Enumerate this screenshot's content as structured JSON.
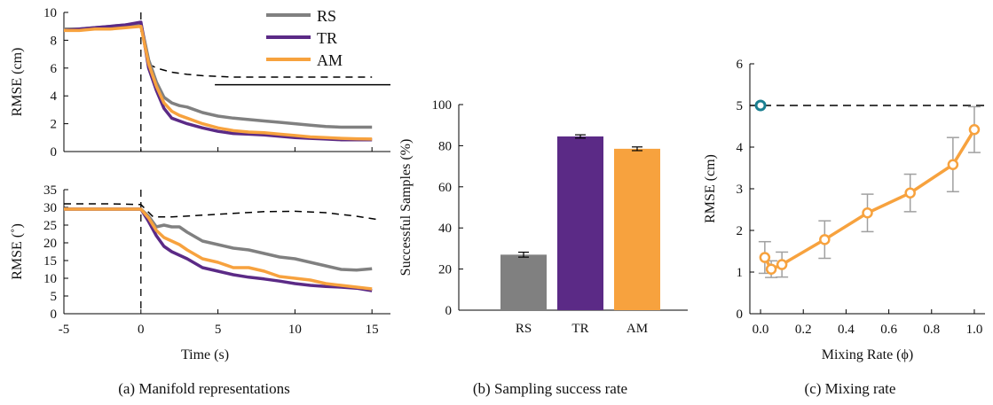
{
  "colors": {
    "RS": "#808080",
    "TR": "#5b2a86",
    "AM": "#f7a23e",
    "reference": "#000000",
    "marker": "#1a7f91"
  },
  "captions": {
    "a": "(a) Manifold representations",
    "b": "(b) Sampling success rate",
    "c": "(c) Mixing rate"
  },
  "chart_data": [
    {
      "id": "a-top",
      "type": "line",
      "ylabel": "RMSE (cm)",
      "xlabel": "",
      "xlim": [
        -5,
        16.2
      ],
      "ylim": [
        0,
        10
      ],
      "yticks": [
        "0",
        "2",
        "4",
        "6",
        "8",
        "10"
      ],
      "legend": {
        "placement": "top-right",
        "entries": [
          "RS",
          "TR",
          "AM"
        ]
      },
      "series": [
        {
          "name": "RS",
          "x": [
            -5,
            -4,
            -3,
            -2,
            -1,
            0,
            0.5,
            1,
            1.5,
            2,
            2.5,
            3,
            4,
            5,
            6,
            7,
            8,
            9,
            10,
            11,
            12,
            13,
            14,
            15
          ],
          "y": [
            8.8,
            8.8,
            8.9,
            9,
            9.1,
            9.2,
            6.6,
            5,
            3.9,
            3.5,
            3.3,
            3.2,
            2.8,
            2.55,
            2.4,
            2.3,
            2.2,
            2.1,
            2.0,
            1.9,
            1.8,
            1.75,
            1.75,
            1.75
          ]
        },
        {
          "name": "TR",
          "x": [
            -5,
            -4,
            -3,
            -2,
            -1,
            0,
            0.5,
            1,
            1.5,
            2,
            2.5,
            3,
            4,
            5,
            6,
            7,
            8,
            9,
            10,
            11,
            12,
            13,
            14,
            15
          ],
          "y": [
            8.7,
            8.8,
            8.9,
            9,
            9.1,
            9.3,
            6.0,
            4.4,
            3.1,
            2.4,
            2.2,
            2.0,
            1.7,
            1.45,
            1.3,
            1.25,
            1.2,
            1.1,
            1.0,
            0.95,
            0.9,
            0.85,
            0.85,
            0.85
          ]
        },
        {
          "name": "AM",
          "x": [
            -5,
            -4,
            -3,
            -2,
            -1,
            0,
            0.5,
            1,
            1.5,
            2,
            2.5,
            3,
            4,
            5,
            6,
            7,
            8,
            9,
            10,
            11,
            12,
            13,
            14,
            15
          ],
          "y": [
            8.7,
            8.7,
            8.8,
            8.8,
            8.9,
            9.0,
            6.3,
            4.7,
            3.5,
            2.9,
            2.6,
            2.4,
            2.0,
            1.7,
            1.5,
            1.4,
            1.35,
            1.25,
            1.15,
            1.05,
            1.0,
            0.95,
            0.92,
            0.9
          ]
        }
      ],
      "reference_dashed": {
        "x": [
          0.5,
          1,
          2,
          3,
          4,
          5,
          6,
          7,
          8,
          9,
          10,
          11,
          12,
          13,
          14,
          15
        ],
        "y": [
          6.3,
          6.0,
          5.7,
          5.55,
          5.45,
          5.4,
          5.35,
          5.35,
          5.35,
          5.35,
          5.35,
          5.35,
          5.35,
          5.35,
          5.35,
          5.35
        ]
      },
      "reference_solid": {
        "x": [
          4.8,
          16.2
        ],
        "y": [
          4.8,
          4.8
        ]
      },
      "vline_dashed_x": 0
    },
    {
      "id": "a-bottom",
      "type": "line",
      "ylabel": "RMSE (˚)",
      "xlabel": "Time (s)",
      "xlim": [
        -5,
        16.2
      ],
      "ylim": [
        0,
        35
      ],
      "xticks": [
        "-5",
        "0",
        "5",
        "10",
        "15"
      ],
      "yticks": [
        "0",
        "5",
        "10",
        "15",
        "20",
        "25",
        "30",
        "35"
      ],
      "series": [
        {
          "name": "RS",
          "x": [
            -5,
            -4,
            -3,
            -2,
            -1,
            0,
            0.5,
            1,
            1.5,
            2,
            2.5,
            3,
            4,
            5,
            6,
            7,
            8,
            9,
            10,
            11,
            12,
            13,
            14,
            15
          ],
          "y": [
            29.5,
            29.5,
            29.5,
            29.5,
            29.5,
            29.5,
            27.5,
            24.5,
            25,
            24.5,
            24.5,
            23,
            20.5,
            19.5,
            18.5,
            18,
            17,
            16,
            15.5,
            14.5,
            13.5,
            12.5,
            12.3,
            12.7
          ]
        },
        {
          "name": "TR",
          "x": [
            -5,
            -4,
            -3,
            -2,
            -1,
            0,
            0.5,
            1,
            1.5,
            2,
            2.5,
            3,
            4,
            5,
            6,
            7,
            8,
            9,
            10,
            11,
            12,
            13,
            14,
            15
          ],
          "y": [
            29.5,
            29.5,
            29.5,
            29.5,
            29.5,
            29.5,
            26,
            22,
            19,
            17.5,
            16.5,
            15.5,
            13,
            12,
            11,
            10.3,
            9.8,
            9.2,
            8.5,
            8,
            7.7,
            7.5,
            7.2,
            6.5
          ]
        },
        {
          "name": "AM",
          "x": [
            -5,
            -4,
            -3,
            -2,
            -1,
            0,
            0.5,
            1,
            1.5,
            2,
            2.5,
            3,
            4,
            5,
            6,
            7,
            8,
            9,
            10,
            11,
            12,
            13,
            14,
            15
          ],
          "y": [
            29.5,
            29.5,
            29.5,
            29.5,
            29.5,
            29.5,
            27,
            23.5,
            21.5,
            20.5,
            19.5,
            18,
            15.5,
            14.5,
            13,
            13,
            12,
            10.5,
            10,
            9.5,
            8.5,
            8,
            7.5,
            7
          ]
        }
      ],
      "reference_dashed": {
        "x": [
          -5,
          -2,
          0,
          0.8,
          2,
          4,
          6,
          8,
          10,
          12,
          14,
          15.5
        ],
        "y": [
          31,
          31,
          30.8,
          27.3,
          27.3,
          27.8,
          28.3,
          28.8,
          28.9,
          28.5,
          27.5,
          26.5
        ]
      },
      "vline_dashed_x": 0
    },
    {
      "id": "b",
      "type": "bar",
      "ylabel": "Successful Samples (%)",
      "ylim": [
        0,
        100
      ],
      "yticks": [
        "0",
        "20",
        "40",
        "60",
        "80",
        "100"
      ],
      "categories": [
        "RS",
        "TR",
        "AM"
      ],
      "values": [
        27,
        84.5,
        78.5
      ],
      "errors": [
        1.2,
        0.8,
        0.9
      ]
    },
    {
      "id": "c",
      "type": "line",
      "xlabel": "Mixing Rate (ϕ)",
      "ylabel": "RMSE (cm)",
      "xlim": [
        -0.05,
        1.05
      ],
      "ylim": [
        0,
        6
      ],
      "xticks": [
        "0.0",
        "0.2",
        "0.4",
        "0.6",
        "0.8",
        "1.0"
      ],
      "yticks": [
        "0",
        "1",
        "2",
        "3",
        "4",
        "5",
        "6"
      ],
      "series": [
        {
          "name": "AM",
          "x": [
            0.02,
            0.05,
            0.1,
            0.3,
            0.5,
            0.7,
            0.9,
            1.0
          ],
          "y": [
            1.35,
            1.07,
            1.18,
            1.78,
            2.42,
            2.9,
            3.58,
            4.42
          ],
          "errors": [
            0.38,
            0.2,
            0.3,
            0.45,
            0.45,
            0.45,
            0.65,
            0.55
          ]
        }
      ],
      "reference_dashed_y": 5.0,
      "reference_point": {
        "x": 0.0,
        "y": 5.0
      }
    }
  ]
}
